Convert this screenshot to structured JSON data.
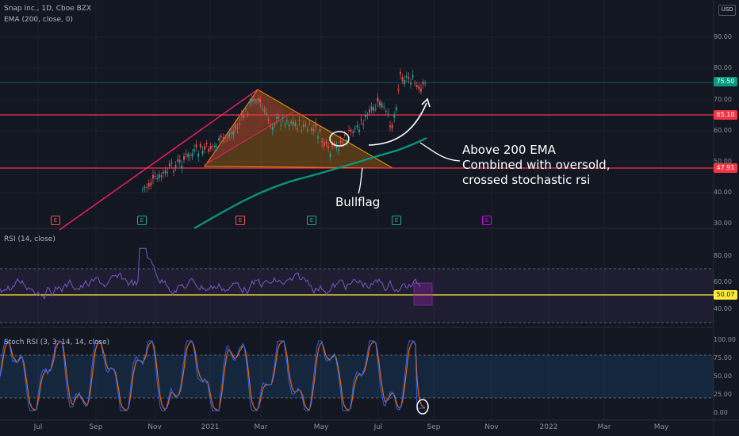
{
  "legend": {
    "symbol": "Snap Inc., 1D, Cboe BZX",
    "ema": "EMA (200, close, 0)",
    "rsi": "RSI (14, close)",
    "stoch": "Stoch RSI (3, 3, 14, 14, close)"
  },
  "currency_button": "USD",
  "price_axis": [
    "90.00",
    "80.00",
    "70.00",
    "60.00",
    "50.00",
    "40.00",
    "30.00"
  ],
  "rsi_axis": [
    "80.00",
    "60.00",
    "40.00"
  ],
  "stoch_axis": [
    "100.00",
    "75.00",
    "50.00",
    "25.00",
    "0.00"
  ],
  "price_tags": {
    "last": "75.50",
    "resistance": "65.10",
    "support": "47.91",
    "rsi": "50.07"
  },
  "time_axis": [
    "Jul",
    "Sep",
    "Nov",
    "2021",
    "Mar",
    "May",
    "Jul",
    "Sep",
    "Nov",
    "2022",
    "Mar",
    "May"
  ],
  "annotations": {
    "bullflag": "Bullflag",
    "note_line1": "Above 200 EMA",
    "note_line2": "Combined with oversold,",
    "note_line3": "crossed stochastic rsi"
  },
  "earnings_badges": [
    "E",
    "E",
    "E",
    "E",
    "E",
    "E"
  ],
  "colors": {
    "background": "#131722",
    "up": "#26a69a",
    "down": "#ef5350",
    "ema": "#089981",
    "resistance": "#f23645",
    "support": "#ff9800",
    "rsi": "#7e57c2",
    "stoch_k": "#2962ff",
    "stoch_d": "#ff6d00",
    "wedge_line": "#e91e63",
    "pattern": "#ff9800"
  }
}
